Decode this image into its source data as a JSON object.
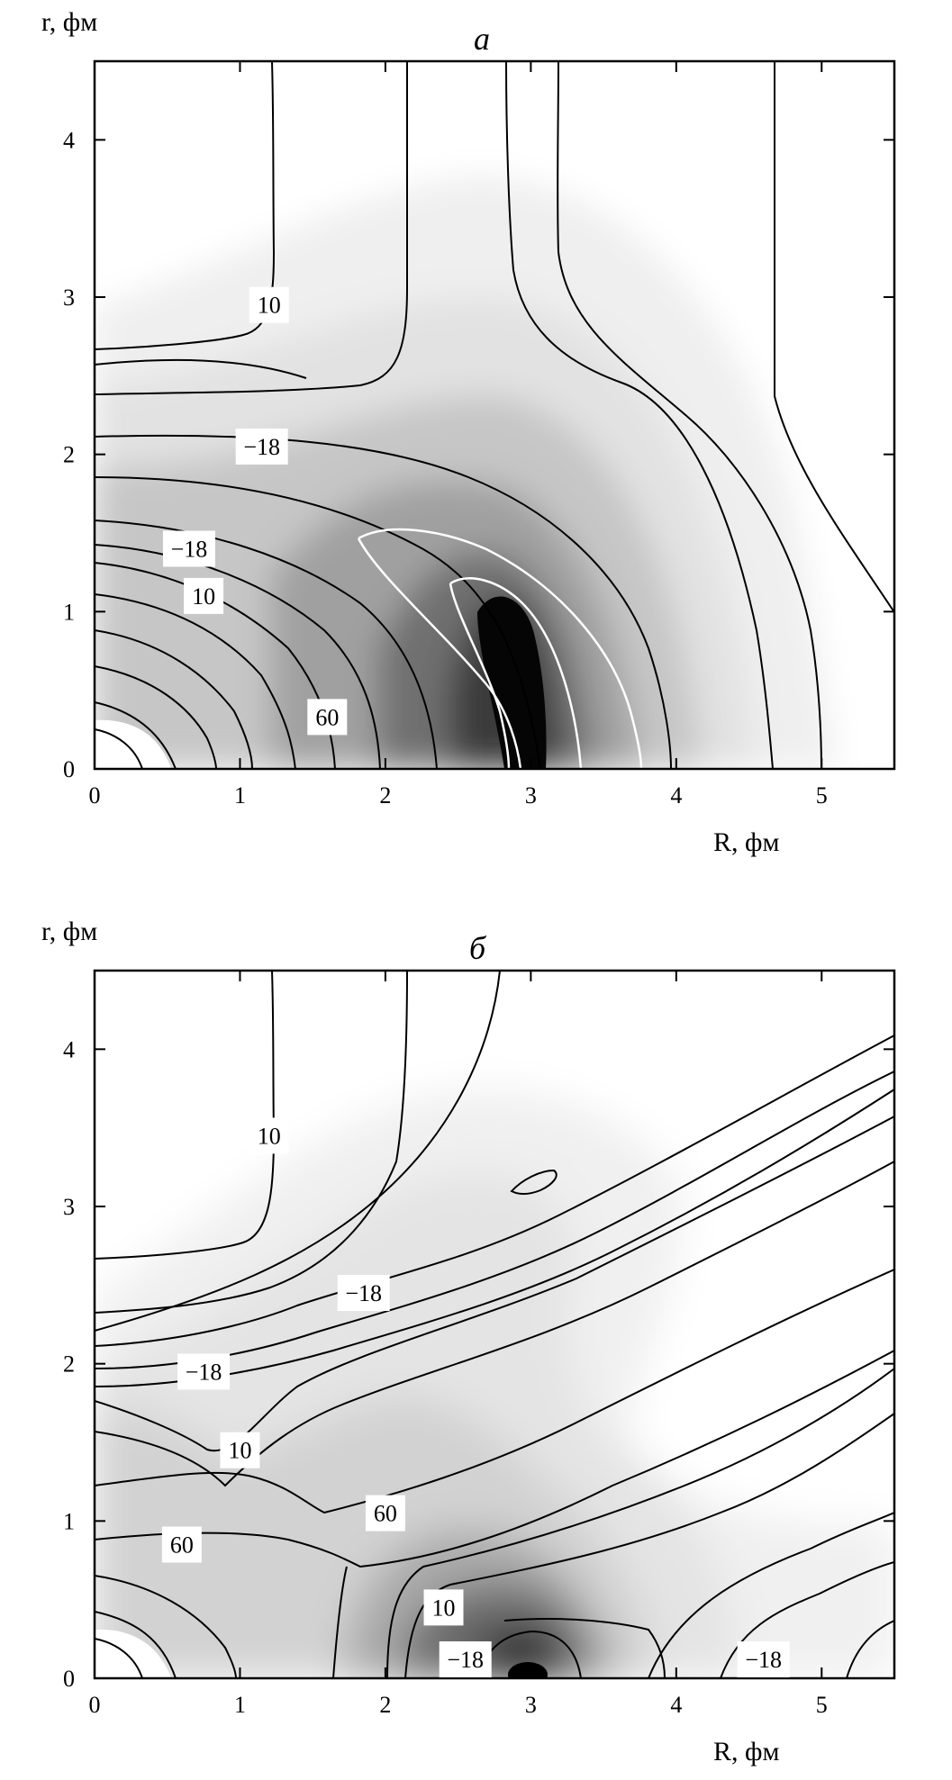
{
  "chart_data": [
    {
      "type": "contour",
      "title": "а",
      "xlabel": "R, фм",
      "ylabel": "r, фм",
      "xlim": [
        0,
        5.5
      ],
      "ylim": [
        0,
        4.5
      ],
      "xticks": [
        "0",
        "1",
        "2",
        "3",
        "4",
        "5"
      ],
      "yticks": [
        "0",
        "1",
        "2",
        "3",
        "4"
      ],
      "xtick_values": [
        0,
        1,
        2,
        3,
        4,
        5
      ],
      "ytick_values": [
        0,
        1,
        2,
        3,
        4
      ],
      "fill": "grayscale density, darkest near R≈2.9, r≈0.5",
      "contour_labels": [
        {
          "text": "10",
          "R": 1.2,
          "r": 2.95
        },
        {
          "text": "−18",
          "R": 1.15,
          "r": 2.05
        },
        {
          "text": "−18",
          "R": 0.65,
          "r": 1.4
        },
        {
          "text": "10",
          "R": 0.75,
          "r": 1.1
        },
        {
          "text": "60",
          "R": 1.6,
          "r": 0.33
        }
      ]
    },
    {
      "type": "contour",
      "title": "б",
      "xlabel": "R, фм",
      "ylabel": "r, фм",
      "xlim": [
        0,
        5.5
      ],
      "ylim": [
        0,
        4.5
      ],
      "xticks": [
        "0",
        "1",
        "2",
        "3",
        "4",
        "5"
      ],
      "yticks": [
        "0",
        "1",
        "2",
        "3",
        "4"
      ],
      "xtick_values": [
        0,
        1,
        2,
        3,
        4,
        5
      ],
      "ytick_values": [
        0,
        1,
        2,
        3,
        4
      ],
      "fill": "grayscale density, darkest near R≈3.0, r≈0",
      "contour_labels": [
        {
          "text": "10",
          "R": 1.2,
          "r": 3.45
        },
        {
          "text": "−18",
          "R": 1.85,
          "r": 2.45
        },
        {
          "text": "−18",
          "R": 0.75,
          "r": 1.95
        },
        {
          "text": "10",
          "R": 1.0,
          "r": 1.45
        },
        {
          "text": "60",
          "R": 2.0,
          "r": 1.05
        },
        {
          "text": "60",
          "R": 0.6,
          "r": 0.85
        },
        {
          "text": "10",
          "R": 2.4,
          "r": 0.45
        },
        {
          "text": "−18",
          "R": 2.55,
          "r": 0.12
        },
        {
          "text": "−18",
          "R": 4.6,
          "r": 0.12
        }
      ]
    }
  ]
}
